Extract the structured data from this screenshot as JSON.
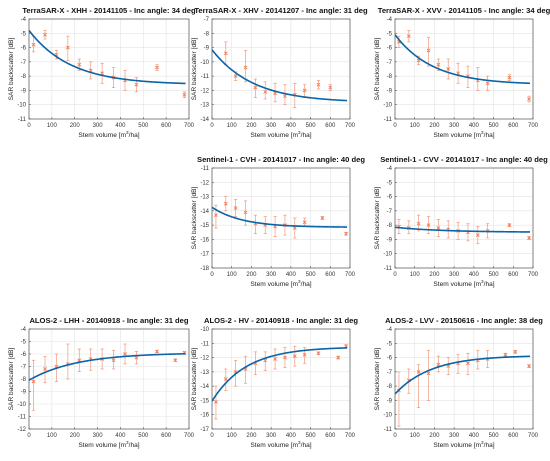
{
  "colors": {
    "fit": "#0a64a8",
    "data": "#f07f5a",
    "axis": "#555555",
    "grid": "#e3e3e3"
  },
  "chart_data": [
    {
      "type": "scatter",
      "title": "TerraSAR-X - XHH - 20141105 - Inc angle: 34 deg",
      "xlabel": "Stem volume",
      "ylabel": "SAR backscatter",
      "xlabel_unit_base": "[m",
      "xlabel_unit_sup": "3",
      "xlabel_unit_tail": "/ha]",
      "ylabel_unit": "[dB]",
      "xlim": [
        0,
        700
      ],
      "ylim": [
        -11,
        -4
      ],
      "xticks": [
        "0",
        "100",
        "200",
        "300",
        "400",
        "500",
        "600",
        "700"
      ],
      "yticks": [
        "-11",
        "-10",
        "-9",
        "-8",
        "-7",
        "-6",
        "-5",
        "-4"
      ],
      "grid": true,
      "points": [
        {
          "x": 20,
          "y": -5.8,
          "lo": -6.3,
          "hi": -5.2
        },
        {
          "x": 70,
          "y": -5.1,
          "lo": -5.4,
          "hi": -4.8
        },
        {
          "x": 120,
          "y": -6.5,
          "lo": -6.8,
          "hi": -6.2
        },
        {
          "x": 170,
          "y": -6.0,
          "lo": -6.9,
          "hi": -5.2
        },
        {
          "x": 220,
          "y": -7.2,
          "lo": -7.6,
          "hi": -6.8
        },
        {
          "x": 270,
          "y": -7.6,
          "lo": -8.2,
          "hi": -7.0
        },
        {
          "x": 320,
          "y": -7.8,
          "lo": -8.5,
          "hi": -7.1
        },
        {
          "x": 370,
          "y": -8.1,
          "lo": -8.8,
          "hi": -7.4
        },
        {
          "x": 420,
          "y": -8.3,
          "lo": -9.0,
          "hi": -7.6
        },
        {
          "x": 470,
          "y": -8.6,
          "lo": -9.1,
          "hi": -8.1
        },
        {
          "x": 560,
          "y": -7.4,
          "lo": -7.6,
          "hi": -7.2
        },
        {
          "x": 680,
          "y": -9.3,
          "lo": -9.5,
          "hi": -9.1
        }
      ],
      "fit": {
        "a": -8.6,
        "b": 3.8,
        "k": 0.0055
      }
    },
    {
      "type": "scatter",
      "title": "TerraSAR-X - XHV - 20141207 - Inc angle: 31 deg",
      "xlabel": "Stem volume",
      "ylabel": "SAR backscatter",
      "xlabel_unit_base": "[m",
      "xlabel_unit_sup": "3",
      "xlabel_unit_tail": "/ha]",
      "ylabel_unit": "[dB]",
      "xlim": [
        0,
        700
      ],
      "ylim": [
        -14,
        -7
      ],
      "xticks": [
        "0",
        "100",
        "200",
        "300",
        "400",
        "500",
        "600",
        "700"
      ],
      "yticks": [
        "-14",
        "-13",
        "-12",
        "-11",
        "-10",
        "-9",
        "-8",
        "-7"
      ],
      "grid": true,
      "points": [
        {
          "x": 70,
          "y": -9.4,
          "lo": -10.2,
          "hi": -8.6
        },
        {
          "x": 120,
          "y": -11.0,
          "lo": -11.3,
          "hi": -10.7
        },
        {
          "x": 170,
          "y": -10.4,
          "lo": -11.4,
          "hi": -9.2
        },
        {
          "x": 220,
          "y": -11.8,
          "lo": -12.5,
          "hi": -11.2
        },
        {
          "x": 270,
          "y": -12.1,
          "lo": -12.6,
          "hi": -11.4
        },
        {
          "x": 320,
          "y": -12.2,
          "lo": -12.8,
          "hi": -11.5
        },
        {
          "x": 370,
          "y": -12.4,
          "lo": -13.0,
          "hi": -11.6
        },
        {
          "x": 420,
          "y": -12.3,
          "lo": -13.2,
          "hi": -11.5
        },
        {
          "x": 470,
          "y": -12.0,
          "lo": -12.5,
          "hi": -11.6
        },
        {
          "x": 540,
          "y": -11.6,
          "lo": -11.9,
          "hi": -11.3
        },
        {
          "x": 600,
          "y": -11.8,
          "lo": -12.0,
          "hi": -11.6
        }
      ],
      "fit": {
        "a": -12.85,
        "b": 3.7,
        "k": 0.0048
      }
    },
    {
      "type": "scatter",
      "title": "TerraSAR-X - XVV - 20141105 - Inc angle: 34 deg",
      "xlabel": "Stem volume",
      "ylabel": "SAR backscatter",
      "xlabel_unit_base": "[m",
      "xlabel_unit_sup": "3",
      "xlabel_unit_tail": "/ha]",
      "ylabel_unit": "[dB]",
      "xlim": [
        0,
        700
      ],
      "ylim": [
        -11,
        -4
      ],
      "xticks": [
        "0",
        "100",
        "200",
        "300",
        "400",
        "500",
        "600",
        "700"
      ],
      "yticks": [
        "-11",
        "-10",
        "-9",
        "-8",
        "-7",
        "-6",
        "-5",
        "-4"
      ],
      "grid": true,
      "points": [
        {
          "x": 20,
          "y": -5.6,
          "lo": -6.0,
          "hi": -5.2
        },
        {
          "x": 70,
          "y": -5.2,
          "lo": -5.6,
          "hi": -4.8
        },
        {
          "x": 120,
          "y": -6.9,
          "lo": -7.2,
          "hi": -6.6
        },
        {
          "x": 170,
          "y": -6.2,
          "lo": -7.3,
          "hi": -5.3
        },
        {
          "x": 220,
          "y": -7.2,
          "lo": -7.6,
          "hi": -6.8
        },
        {
          "x": 270,
          "y": -7.5,
          "lo": -8.2,
          "hi": -6.8
        },
        {
          "x": 320,
          "y": -7.8,
          "lo": -8.5,
          "hi": -7.1
        },
        {
          "x": 370,
          "y": -8.0,
          "lo": -8.8,
          "hi": -7.3
        },
        {
          "x": 420,
          "y": -8.3,
          "lo": -9.0,
          "hi": -7.4
        },
        {
          "x": 470,
          "y": -8.5,
          "lo": -9.0,
          "hi": -8.0
        },
        {
          "x": 580,
          "y": -8.1,
          "lo": -8.3,
          "hi": -7.9
        },
        {
          "x": 680,
          "y": -9.6,
          "lo": -9.8,
          "hi": -9.4
        }
      ],
      "fit": {
        "a": -8.6,
        "b": 3.5,
        "k": 0.0052
      }
    },
    {
      "type": "scatter",
      "title": "Sentinel-1 - CVH - 20141017 - Inc angle: 40 deg",
      "xlabel": "Stem volume",
      "ylabel": "SAR backscatter",
      "xlabel_unit_base": "[m",
      "xlabel_unit_sup": "3",
      "xlabel_unit_tail": "/ha]",
      "ylabel_unit": "[dB]",
      "xlim": [
        0,
        700
      ],
      "ylim": [
        -18,
        -11
      ],
      "xticks": [
        "0",
        "100",
        "200",
        "300",
        "400",
        "500",
        "600",
        "700"
      ],
      "yticks": [
        "-18",
        "-17",
        "-16",
        "-15",
        "-14",
        "-13",
        "-12",
        "-11"
      ],
      "grid": true,
      "points": [
        {
          "x": 20,
          "y": -14.3,
          "lo": -15.2,
          "hi": -13.6
        },
        {
          "x": 70,
          "y": -13.5,
          "lo": -14.0,
          "hi": -13.0
        },
        {
          "x": 120,
          "y": -13.8,
          "lo": -14.4,
          "hi": -13.2
        },
        {
          "x": 170,
          "y": -14.1,
          "lo": -15.0,
          "hi": -13.3
        },
        {
          "x": 220,
          "y": -14.9,
          "lo": -15.6,
          "hi": -14.3
        },
        {
          "x": 270,
          "y": -15.0,
          "lo": -15.6,
          "hi": -14.4
        },
        {
          "x": 320,
          "y": -15.1,
          "lo": -15.8,
          "hi": -14.4
        },
        {
          "x": 370,
          "y": -15.0,
          "lo": -15.7,
          "hi": -14.3
        },
        {
          "x": 420,
          "y": -15.2,
          "lo": -15.9,
          "hi": -14.5
        },
        {
          "x": 470,
          "y": -14.8,
          "lo": -15.1,
          "hi": -14.5
        },
        {
          "x": 560,
          "y": -14.5,
          "lo": -14.6,
          "hi": -14.4
        },
        {
          "x": 680,
          "y": -15.6,
          "lo": -15.7,
          "hi": -15.5
        }
      ],
      "fit": {
        "a": -15.15,
        "b": 1.4,
        "k": 0.0065
      }
    },
    {
      "type": "scatter",
      "title": "Sentinel-1 - CVV - 20141017 - Inc angle: 40 deg",
      "xlabel": "Stem volume",
      "ylabel": "SAR backscatter",
      "xlabel_unit_base": "[m",
      "xlabel_unit_sup": "3",
      "xlabel_unit_tail": "/ha]",
      "ylabel_unit": "[dB]",
      "xlim": [
        0,
        700
      ],
      "ylim": [
        -11,
        -4
      ],
      "xticks": [
        "0",
        "100",
        "200",
        "300",
        "400",
        "500",
        "600",
        "700"
      ],
      "yticks": [
        "-11",
        "-10",
        "-9",
        "-8",
        "-7",
        "-6",
        "-5",
        "-4"
      ],
      "grid": true,
      "points": [
        {
          "x": 20,
          "y": -8.1,
          "lo": -8.6,
          "hi": -7.6
        },
        {
          "x": 70,
          "y": -8.2,
          "lo": -8.6,
          "hi": -7.7
        },
        {
          "x": 120,
          "y": -7.9,
          "lo": -8.4,
          "hi": -7.3
        },
        {
          "x": 170,
          "y": -8.0,
          "lo": -8.6,
          "hi": -7.4
        },
        {
          "x": 220,
          "y": -8.2,
          "lo": -8.8,
          "hi": -7.6
        },
        {
          "x": 270,
          "y": -8.3,
          "lo": -8.9,
          "hi": -7.7
        },
        {
          "x": 320,
          "y": -8.4,
          "lo": -9.0,
          "hi": -7.8
        },
        {
          "x": 370,
          "y": -8.5,
          "lo": -9.1,
          "hi": -7.9
        },
        {
          "x": 420,
          "y": -8.7,
          "lo": -9.3,
          "hi": -8.1
        },
        {
          "x": 470,
          "y": -8.4,
          "lo": -8.9,
          "hi": -7.9
        },
        {
          "x": 580,
          "y": -8.0,
          "lo": -8.1,
          "hi": -7.9
        },
        {
          "x": 680,
          "y": -8.9,
          "lo": -9.0,
          "hi": -8.8
        }
      ],
      "fit": {
        "a": -8.5,
        "b": 0.35,
        "k": 0.004
      }
    },
    {
      "type": "scatter",
      "title": "ALOS-2 - LHH - 20140918 - Inc angle: 31 deg",
      "xlabel": "Stem volume",
      "ylabel": "SAR backscatter",
      "xlabel_unit_base": "[m",
      "xlabel_unit_sup": "3",
      "xlabel_unit_tail": "/ha]",
      "ylabel_unit": "[dB]",
      "xlim": [
        0,
        700
      ],
      "ylim": [
        -12,
        -4
      ],
      "xticks": [
        "0",
        "100",
        "200",
        "300",
        "400",
        "500",
        "600",
        "700"
      ],
      "yticks": [
        "-12",
        "-11",
        "-10",
        "-9",
        "-8",
        "-7",
        "-6",
        "-5",
        "-4"
      ],
      "grid": true,
      "points": [
        {
          "x": 20,
          "y": -8.2,
          "lo": -10.5,
          "hi": -6.5
        },
        {
          "x": 70,
          "y": -7.2,
          "lo": -8.3,
          "hi": -6.2
        },
        {
          "x": 120,
          "y": -7.0,
          "lo": -8.2,
          "hi": -6.0
        },
        {
          "x": 170,
          "y": -6.8,
          "lo": -8.0,
          "hi": -5.2
        },
        {
          "x": 220,
          "y": -6.5,
          "lo": -7.4,
          "hi": -5.6
        },
        {
          "x": 270,
          "y": -6.4,
          "lo": -7.3,
          "hi": -5.6
        },
        {
          "x": 320,
          "y": -6.4,
          "lo": -7.2,
          "hi": -5.6
        },
        {
          "x": 370,
          "y": -6.5,
          "lo": -7.2,
          "hi": -5.7
        },
        {
          "x": 420,
          "y": -6.0,
          "lo": -6.8,
          "hi": -5.2
        },
        {
          "x": 470,
          "y": -6.3,
          "lo": -6.8,
          "hi": -5.8
        },
        {
          "x": 560,
          "y": -5.8,
          "lo": -5.9,
          "hi": -5.7
        },
        {
          "x": 640,
          "y": -6.5,
          "lo": -6.6,
          "hi": -6.4
        },
        {
          "x": 680,
          "y": -5.9,
          "lo": -6.0,
          "hi": -5.8
        }
      ],
      "fit": {
        "a": -5.9,
        "b": -2.2,
        "k": 0.0048
      }
    },
    {
      "type": "scatter",
      "title": "ALOS-2 - HV - 20140918 - Inc angle: 31 deg",
      "xlabel": "Stem volume",
      "ylabel": "SAR backscatter",
      "xlabel_unit_base": "[m",
      "xlabel_unit_sup": "3",
      "xlabel_unit_tail": "/ha]",
      "ylabel_unit": "[dB]",
      "xlim": [
        0,
        700
      ],
      "ylim": [
        -17,
        -10
      ],
      "xticks": [
        "0",
        "100",
        "200",
        "300",
        "400",
        "500",
        "600",
        "700"
      ],
      "yticks": [
        "-17",
        "-16",
        "-15",
        "-14",
        "-13",
        "-12",
        "-11",
        "-10"
      ],
      "grid": true,
      "points": [
        {
          "x": 20,
          "y": -15.1,
          "lo": -16.3,
          "hi": -14.0
        },
        {
          "x": 70,
          "y": -13.5,
          "lo": -14.3,
          "hi": -12.8
        },
        {
          "x": 120,
          "y": -13.0,
          "lo": -14.0,
          "hi": -12.2
        },
        {
          "x": 170,
          "y": -12.8,
          "lo": -13.8,
          "hi": -11.9
        },
        {
          "x": 220,
          "y": -12.4,
          "lo": -13.2,
          "hi": -11.6
        },
        {
          "x": 270,
          "y": -12.2,
          "lo": -12.9,
          "hi": -11.6
        },
        {
          "x": 320,
          "y": -12.1,
          "lo": -12.8,
          "hi": -11.4
        },
        {
          "x": 370,
          "y": -12.0,
          "lo": -12.7,
          "hi": -11.3
        },
        {
          "x": 420,
          "y": -11.9,
          "lo": -12.6,
          "hi": -11.2
        },
        {
          "x": 470,
          "y": -11.8,
          "lo": -12.4,
          "hi": -11.3
        },
        {
          "x": 540,
          "y": -11.7,
          "lo": -11.8,
          "hi": -11.6
        },
        {
          "x": 640,
          "y": -12.0,
          "lo": -12.1,
          "hi": -11.9
        },
        {
          "x": 680,
          "y": -11.2,
          "lo": -11.3,
          "hi": -11.1
        }
      ],
      "fit": {
        "a": -11.25,
        "b": -3.8,
        "k": 0.0058
      }
    },
    {
      "type": "scatter",
      "title": "ALOS-2 - LVV - 20150616 - Inc angle: 38 deg",
      "xlabel": "Stem volume",
      "ylabel": "SAR backscatter",
      "xlabel_unit_base": "[m",
      "xlabel_unit_sup": "3",
      "xlabel_unit_tail": "/ha]",
      "ylabel_unit": "[dB]",
      "xlim": [
        0,
        700
      ],
      "ylim": [
        -11,
        -4
      ],
      "xticks": [
        "0",
        "100",
        "200",
        "300",
        "400",
        "500",
        "600",
        "700"
      ],
      "yticks": [
        "-11",
        "-10",
        "-9",
        "-8",
        "-7",
        "-6",
        "-5",
        "-4"
      ],
      "grid": true,
      "points": [
        {
          "x": 20,
          "y": -8.3,
          "lo": -10.8,
          "hi": -7.0
        },
        {
          "x": 70,
          "y": -7.6,
          "lo": -8.5,
          "hi": -6.8
        },
        {
          "x": 120,
          "y": -7.0,
          "lo": -9.5,
          "hi": -6.5
        },
        {
          "x": 170,
          "y": -7.1,
          "lo": -9.0,
          "hi": -5.5
        },
        {
          "x": 220,
          "y": -6.5,
          "lo": -7.0,
          "hi": -5.9
        },
        {
          "x": 270,
          "y": -6.6,
          "lo": -7.2,
          "hi": -6.0
        },
        {
          "x": 320,
          "y": -6.4,
          "lo": -7.1,
          "hi": -5.8
        },
        {
          "x": 370,
          "y": -6.4,
          "lo": -7.2,
          "hi": -5.7
        },
        {
          "x": 420,
          "y": -6.2,
          "lo": -6.8,
          "hi": -5.5
        },
        {
          "x": 470,
          "y": -6.1,
          "lo": -6.7,
          "hi": -5.5
        },
        {
          "x": 560,
          "y": -5.8,
          "lo": -5.9,
          "hi": -5.7
        },
        {
          "x": 610,
          "y": -5.6,
          "lo": -5.7,
          "hi": -5.5
        },
        {
          "x": 680,
          "y": -6.6,
          "lo": -6.7,
          "hi": -6.5
        }
      ],
      "fit": {
        "a": -5.85,
        "b": -2.7,
        "k": 0.0055
      }
    }
  ]
}
